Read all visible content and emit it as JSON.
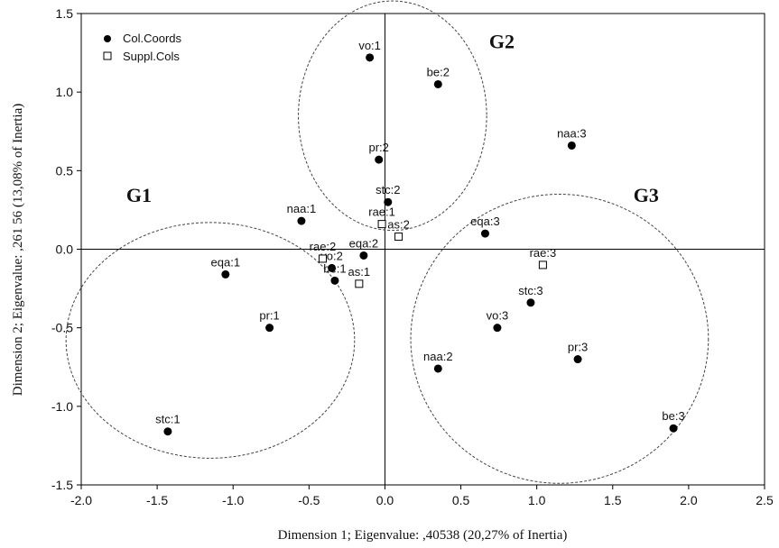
{
  "chart_data": {
    "type": "scatter",
    "xlabel": "Dimension 1; Eigenvalue: ,40538 (20,27% of Inertia)",
    "ylabel": "Dimension 2; Eigenvalue: ,261 56 (13,08% of Inertia)",
    "xlim": [
      -2.0,
      2.5
    ],
    "ylim": [
      -1.5,
      1.5
    ],
    "xticks": [
      "-2.0",
      "-1.5",
      "-1.0",
      "-0.5",
      "0.0",
      "0.5",
      "1.0",
      "1.5",
      "2.0",
      "2.5"
    ],
    "yticks": [
      "1.5",
      "1.0",
      "0.5",
      "0.0",
      "-0.5",
      "-1.0",
      "-1.5"
    ],
    "legend": [
      {
        "label": "Col.Coords",
        "marker": "filled-circle"
      },
      {
        "label": "Suppl.Cols",
        "marker": "open-square"
      }
    ],
    "legend_position": "top-left",
    "series": [
      {
        "name": "Col.Coords",
        "points": [
          {
            "label": "vo:1",
            "x": -0.1,
            "y": 1.22
          },
          {
            "label": "be:2",
            "x": 0.35,
            "y": 1.05
          },
          {
            "label": "pr:2",
            "x": -0.04,
            "y": 0.57
          },
          {
            "label": "stc:2",
            "x": 0.02,
            "y": 0.3
          },
          {
            "label": "naa:1",
            "x": -0.55,
            "y": 0.18
          },
          {
            "label": "eqa:2",
            "x": -0.14,
            "y": -0.04
          },
          {
            "label": "vo:2",
            "x": -0.35,
            "y": -0.12
          },
          {
            "label": "be:1",
            "x": -0.33,
            "y": -0.2
          },
          {
            "label": "eqa:1",
            "x": -1.05,
            "y": -0.16
          },
          {
            "label": "pr:1",
            "x": -0.76,
            "y": -0.5
          },
          {
            "label": "stc:1",
            "x": -1.43,
            "y": -1.16
          },
          {
            "label": "naa:3",
            "x": 1.23,
            "y": 0.66
          },
          {
            "label": "eqa:3",
            "x": 0.66,
            "y": 0.1
          },
          {
            "label": "stc:3",
            "x": 0.96,
            "y": -0.34
          },
          {
            "label": "vo:3",
            "x": 0.74,
            "y": -0.5
          },
          {
            "label": "pr:3",
            "x": 1.27,
            "y": -0.7
          },
          {
            "label": "naa:2",
            "x": 0.35,
            "y": -0.76
          },
          {
            "label": "be:3",
            "x": 1.9,
            "y": -1.14
          }
        ]
      },
      {
        "name": "Suppl.Cols",
        "points": [
          {
            "label": "rae:1",
            "x": -0.02,
            "y": 0.16
          },
          {
            "label": "as:2",
            "x": 0.09,
            "y": 0.08
          },
          {
            "label": "rae:2",
            "x": -0.41,
            "y": -0.06
          },
          {
            "label": "as:1",
            "x": -0.17,
            "y": -0.22
          },
          {
            "label": "rae:3",
            "x": 1.04,
            "y": -0.1
          }
        ]
      }
    ],
    "groups": [
      {
        "label": "G1",
        "center": [
          -1.15,
          -0.58
        ],
        "radius": [
          0.95,
          0.75
        ]
      },
      {
        "label": "G2",
        "center": [
          0.05,
          0.85
        ],
        "radius": [
          0.62,
          0.73
        ]
      },
      {
        "label": "G3",
        "center": [
          1.15,
          -0.57
        ],
        "radius": [
          0.98,
          0.92
        ]
      }
    ]
  }
}
